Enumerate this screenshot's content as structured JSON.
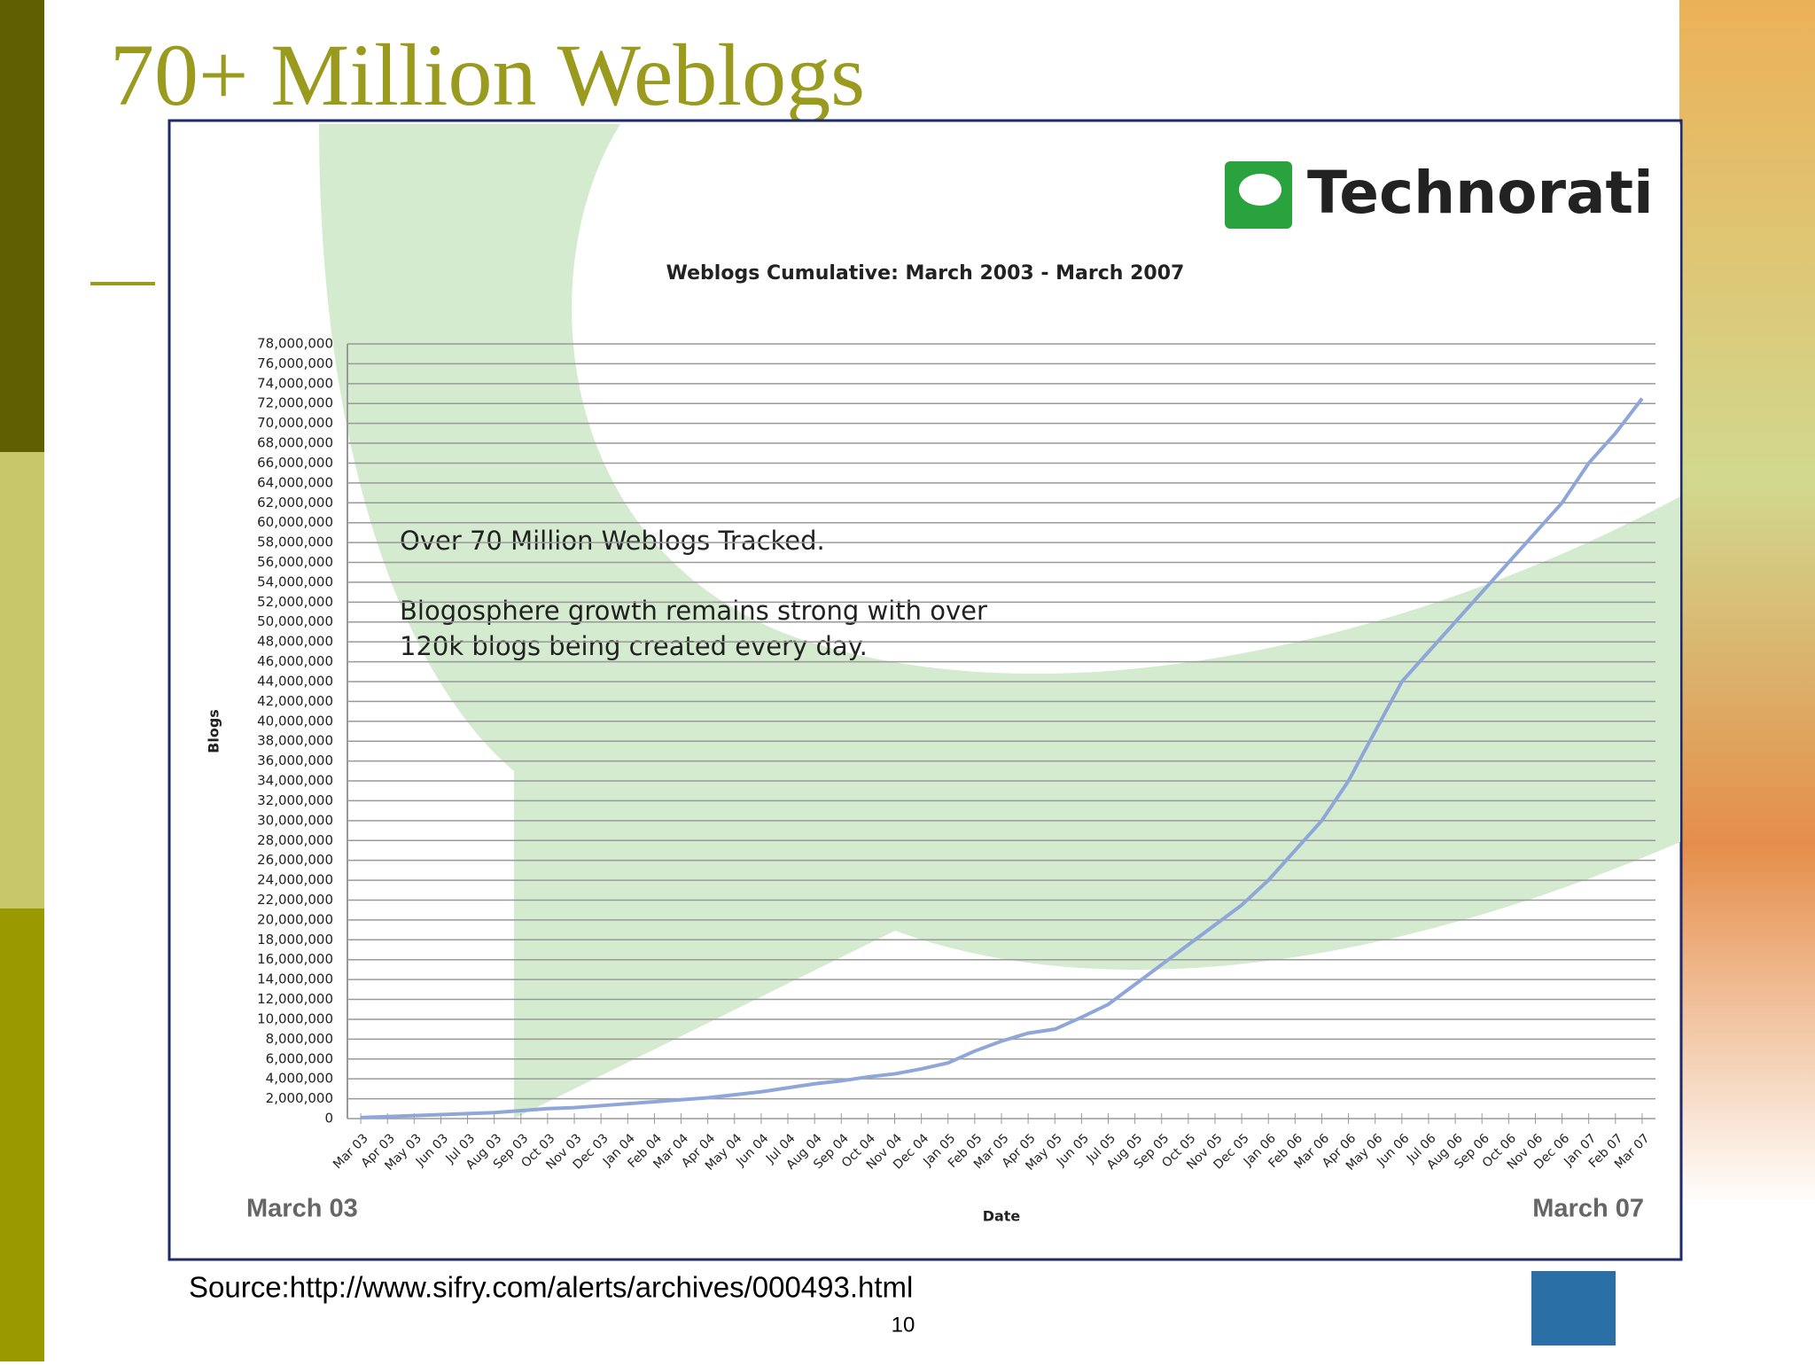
{
  "slide": {
    "title": "70+ Million Weblogs",
    "source": "Source:http://www.sifry.com/alerts/archives/000493.html",
    "page_number": "10"
  },
  "chart_data": {
    "type": "line",
    "logo_text": "Technorati",
    "title": "Weblogs Cumulative: March 2003 - March 2007",
    "x_label": "Date",
    "y_label": "Blogs",
    "color": "#8fa6d8",
    "grid": true,
    "annotations": [
      "Over 70 Million Weblogs Tracked.",
      "Blogosphere growth remains strong with over",
      "120k blogs being created every day."
    ],
    "range_labels": [
      "March 03",
      "March 07"
    ],
    "categories": [
      "Mar 03",
      "Apr 03",
      "May 03",
      "Jun 03",
      "Jul 03",
      "Aug 03",
      "Sep 03",
      "Oct 03",
      "Nov 03",
      "Dec 03",
      "Jan 04",
      "Feb 04",
      "Mar 04",
      "Apr 04",
      "May 04",
      "Jun 04",
      "Jul 04",
      "Aug 04",
      "Sep 04",
      "Oct 04",
      "Nov 04",
      "Dec 04",
      "Jan 05",
      "Feb 05",
      "Mar 05",
      "Apr 05",
      "May 05",
      "Jun 05",
      "Jul 05",
      "Aug 05",
      "Sep 05",
      "Oct 05",
      "Nov 05",
      "Dec 05",
      "Jan 06",
      "Feb 06",
      "Mar 06",
      "Apr 06",
      "May 06",
      "Jun 06",
      "Jul 06",
      "Aug 06",
      "Sep 06",
      "Oct 06",
      "Nov 06",
      "Dec 06",
      "Jan 07",
      "Feb 07",
      "Mar 07"
    ],
    "values": [
      100000,
      200000,
      300000,
      400000,
      500000,
      600000,
      800000,
      1000000,
      1100000,
      1300000,
      1500000,
      1700000,
      1900000,
      2100000,
      2400000,
      2700000,
      3100000,
      3500000,
      3800000,
      4200000,
      4500000,
      5000000,
      5600000,
      6800000,
      7800000,
      8600000,
      9000000,
      10200000,
      11500000,
      13500000,
      15500000,
      17500000,
      19500000,
      21500000,
      24000000,
      27000000,
      30000000,
      34000000,
      39000000,
      44000000,
      47000000,
      50000000,
      53000000,
      56000000,
      59000000,
      62000000,
      66000000,
      69000000,
      72500000
    ],
    "ylim": [
      0,
      78000000
    ],
    "yticks": [
      0,
      {
        "value": 2000000,
        "label": "2,000,000"
      },
      {
        "value": 4000000,
        "label": "4,000,000"
      },
      {
        "value": 6000000,
        "label": "6,000,000"
      },
      {
        "value": 8000000,
        "label": "8,000,000"
      },
      {
        "value": 10000000,
        "label": "10,000,000"
      },
      {
        "value": 12000000,
        "label": "12,000,000"
      },
      {
        "value": 14000000,
        "label": "14,000,000"
      },
      {
        "value": 16000000,
        "label": "16,000,000"
      },
      {
        "value": 18000000,
        "label": "18,000,000"
      },
      {
        "value": 20000000,
        "label": "20,000,000"
      },
      {
        "value": 22000000,
        "label": "22,000,000"
      },
      {
        "value": 24000000,
        "label": "24,000,000"
      },
      {
        "value": 26000000,
        "label": "26,000,000"
      },
      {
        "value": 28000000,
        "label": "28,000,000"
      },
      {
        "value": 30000000,
        "label": "30,000,000"
      },
      {
        "value": 32000000,
        "label": "32,000,000"
      },
      {
        "value": 34000000,
        "label": "34,000,000"
      },
      {
        "value": 36000000,
        "label": "36,000,000"
      },
      {
        "value": 38000000,
        "label": "38,000,000"
      },
      {
        "value": 40000000,
        "label": "40,000,000"
      },
      {
        "value": 42000000,
        "label": "42,000,000"
      },
      {
        "value": 44000000,
        "label": "44,000,000"
      },
      {
        "value": 46000000,
        "label": "46,000,000"
      },
      {
        "value": 48000000,
        "label": "48,000,000"
      },
      {
        "value": 50000000,
        "label": "50,000,000"
      },
      {
        "value": 52000000,
        "label": "52,000,000"
      },
      {
        "value": 54000000,
        "label": "54,000,000"
      },
      {
        "value": 56000000,
        "label": "56,000,000"
      },
      {
        "value": 58000000,
        "label": "58,000,000"
      },
      {
        "value": 60000000,
        "label": "60,000,000"
      },
      {
        "value": 62000000,
        "label": "62,000,000"
      },
      {
        "value": 64000000,
        "label": "64,000,000"
      },
      {
        "value": 66000000,
        "label": "66,000,000"
      },
      {
        "value": 68000000,
        "label": "68,000,000"
      },
      {
        "value": 70000000,
        "label": "70,000,000"
      },
      {
        "value": 72000000,
        "label": "72,000,000"
      },
      {
        "value": 74000000,
        "label": "74,000,000"
      },
      {
        "value": 76000000,
        "label": "76,000,000"
      },
      {
        "value": 78000000,
        "label": "78,000,000"
      }
    ]
  }
}
